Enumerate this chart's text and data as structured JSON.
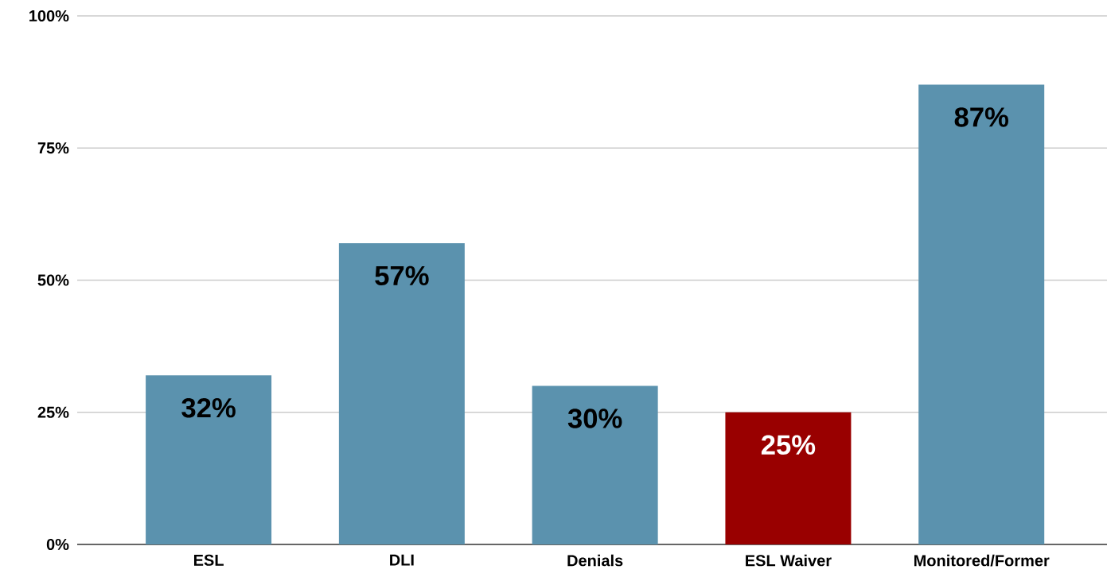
{
  "chart_data": {
    "type": "bar",
    "categories": [
      "ESL",
      "DLI",
      "Denials",
      "ESL Waiver",
      "Monitored/Former"
    ],
    "values": [
      32,
      57,
      30,
      25,
      87
    ],
    "colors": [
      "#5b92ae",
      "#5b92ae",
      "#5b92ae",
      "#990000",
      "#5b92ae"
    ],
    "value_labels": [
      "32%",
      "57%",
      "30%",
      "25%",
      "87%"
    ],
    "ylim": [
      0,
      100
    ],
    "yticks": [
      {
        "value": 0,
        "label": "0%"
      },
      {
        "value": 25,
        "label": "25%"
      },
      {
        "value": 50,
        "label": "50%"
      },
      {
        "value": 75,
        "label": "75%"
      },
      {
        "value": 100,
        "label": "100%"
      }
    ],
    "grid": "y"
  }
}
